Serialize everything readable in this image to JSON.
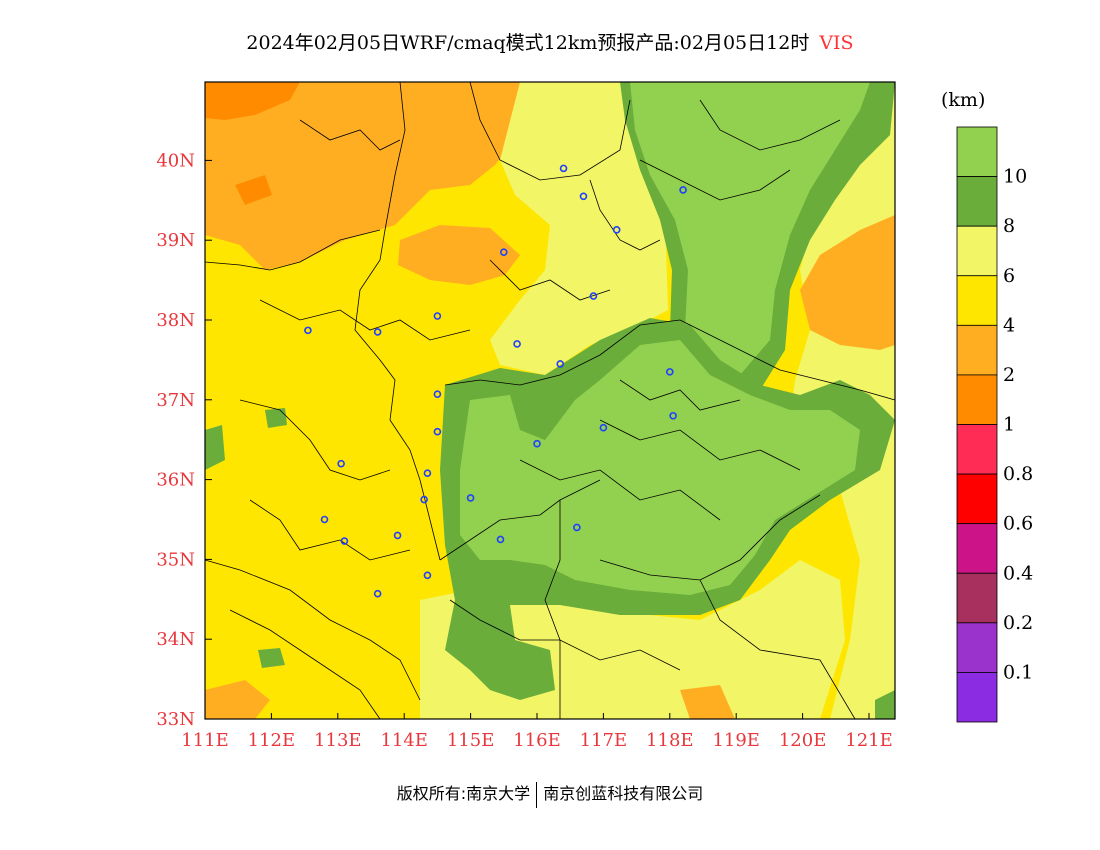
{
  "title": {
    "main": "2024年02月05日WRF/cmaq模式12km预报产品:02月05日12时",
    "variable": "VIS"
  },
  "colorbar": {
    "unit": "(km)",
    "bins": [
      {
        "color": "#92d050",
        "label": "10"
      },
      {
        "color": "#6aad3a",
        "label": "8"
      },
      {
        "color": "#f2f566",
        "label": "6"
      },
      {
        "color": "#ffe600",
        "label": "4"
      },
      {
        "color": "#ffae22",
        "label": "2"
      },
      {
        "color": "#ff8c00",
        "label": "1"
      },
      {
        "color": "#ff2c55",
        "label": "0.8"
      },
      {
        "color": "#ff0000",
        "label": "0.6"
      },
      {
        "color": "#cc1488",
        "label": "0.4"
      },
      {
        "color": "#a8305e",
        "label": "0.2"
      },
      {
        "color": "#9a33cc",
        "label": "0.1"
      },
      {
        "color": "#8b2be2",
        "label": ""
      }
    ]
  },
  "axes": {
    "lon_labels": [
      "111E",
      "112E",
      "113E",
      "114E",
      "115E",
      "116E",
      "117E",
      "118E",
      "119E",
      "120E",
      "121E"
    ],
    "lat_labels": [
      "33N",
      "34N",
      "35N",
      "36N",
      "37N",
      "38N",
      "39N",
      "40N"
    ]
  },
  "stations": [
    [
      116.4,
      39.9
    ],
    [
      116.7,
      39.55
    ],
    [
      117.2,
      39.13
    ],
    [
      116.85,
      38.3
    ],
    [
      115.5,
      38.85
    ],
    [
      114.5,
      38.05
    ],
    [
      113.6,
      37.85
    ],
    [
      112.55,
      37.87
    ],
    [
      115.7,
      37.7
    ],
    [
      116.35,
      37.45
    ],
    [
      114.5,
      37.07
    ],
    [
      114.5,
      36.6
    ],
    [
      116.0,
      36.45
    ],
    [
      117.0,
      36.65
    ],
    [
      118.0,
      37.35
    ],
    [
      118.05,
      36.8
    ],
    [
      118.2,
      39.63
    ],
    [
      114.35,
      36.08
    ],
    [
      114.3,
      35.75
    ],
    [
      115.0,
      35.77
    ],
    [
      115.45,
      35.25
    ],
    [
      116.6,
      35.4
    ],
    [
      113.9,
      35.3
    ],
    [
      113.1,
      35.23
    ],
    [
      112.8,
      35.5
    ],
    [
      113.05,
      36.2
    ],
    [
      114.35,
      34.8
    ],
    [
      113.6,
      34.57
    ]
  ],
  "copyright": {
    "left": "版权所有:南京大学",
    "right": "南京创蓝科技有限公司"
  }
}
